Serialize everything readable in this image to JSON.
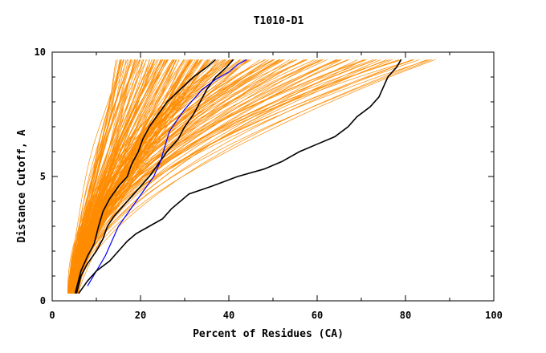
{
  "chart_data": {
    "type": "line",
    "title": "T1010-D1",
    "xlabel": "Percent of Residues (CA)",
    "ylabel": "Distance Cutoff, A",
    "xlim": [
      0,
      100
    ],
    "ylim": [
      0,
      10
    ],
    "x_ticks": [
      "0",
      "20",
      "40",
      "60",
      "80",
      "100"
    ],
    "y_ticks": [
      "0",
      "5",
      "10"
    ],
    "grid": false,
    "legend": "none",
    "colors": {
      "models": "#ff8c00",
      "highlight_black": "#000000",
      "highlight_blue": "#0000ff",
      "axes": "#000000"
    },
    "note": "many orange model curves (GDT plot); approximate envelopes given",
    "series": [
      {
        "color": "#000000",
        "points": [
          [
            5.2,
            0.3
          ],
          [
            6.5,
            1.2
          ],
          [
            8,
            1.8
          ],
          [
            9.5,
            2.3
          ],
          [
            10.5,
            3
          ],
          [
            11.5,
            3.6
          ],
          [
            13,
            4.1
          ],
          [
            15,
            4.6
          ],
          [
            17,
            5
          ],
          [
            18,
            5.5
          ],
          [
            19.5,
            6
          ],
          [
            20.5,
            6.5
          ],
          [
            22,
            7
          ],
          [
            24,
            7.5
          ],
          [
            26,
            8
          ],
          [
            29,
            8.5
          ],
          [
            32,
            9
          ],
          [
            35,
            9.4
          ],
          [
            37,
            9.7
          ]
        ]
      },
      {
        "color": "#000000",
        "points": [
          [
            5.5,
            0.3
          ],
          [
            6.5,
            1
          ],
          [
            8,
            1.5
          ],
          [
            10,
            2
          ],
          [
            11.5,
            2.5
          ],
          [
            12.5,
            3
          ],
          [
            14,
            3.4
          ],
          [
            16,
            3.8
          ],
          [
            18,
            4.2
          ],
          [
            20,
            4.6
          ],
          [
            22,
            5
          ],
          [
            24,
            5.5
          ],
          [
            26,
            6
          ],
          [
            28.5,
            6.5
          ],
          [
            30,
            7
          ],
          [
            32,
            7.5
          ],
          [
            33.5,
            8
          ],
          [
            35,
            8.5
          ],
          [
            37,
            9
          ],
          [
            39.5,
            9.4
          ],
          [
            41,
            9.7
          ]
        ]
      },
      {
        "color": "#0000ff",
        "points": [
          [
            8,
            0.6
          ],
          [
            10,
            1.2
          ],
          [
            12,
            1.8
          ],
          [
            13.5,
            2.4
          ],
          [
            15,
            3
          ],
          [
            17,
            3.5
          ],
          [
            19,
            4
          ],
          [
            21,
            4.5
          ],
          [
            23,
            5
          ],
          [
            24.5,
            5.6
          ],
          [
            25.5,
            6.2
          ],
          [
            26.5,
            6.8
          ],
          [
            28,
            7.2
          ],
          [
            30,
            7.7
          ],
          [
            32,
            8.1
          ],
          [
            34,
            8.5
          ],
          [
            37,
            8.9
          ],
          [
            40,
            9.2
          ],
          [
            42,
            9.5
          ],
          [
            44,
            9.7
          ]
        ]
      },
      {
        "color": "#000000",
        "points": [
          [
            6,
            0.3
          ],
          [
            8,
            0.8
          ],
          [
            10,
            1.2
          ],
          [
            13,
            1.6
          ],
          [
            15,
            2
          ],
          [
            17,
            2.4
          ],
          [
            19,
            2.7
          ],
          [
            22,
            3
          ],
          [
            25,
            3.3
          ],
          [
            27,
            3.7
          ],
          [
            29,
            4
          ],
          [
            31,
            4.3
          ],
          [
            36,
            4.6
          ],
          [
            42,
            5
          ],
          [
            48,
            5.3
          ],
          [
            52,
            5.6
          ],
          [
            56,
            6
          ],
          [
            60,
            6.3
          ],
          [
            64,
            6.6
          ],
          [
            67,
            7
          ],
          [
            69,
            7.4
          ],
          [
            72,
            7.8
          ],
          [
            74,
            8.2
          ],
          [
            75,
            8.6
          ],
          [
            76,
            9
          ],
          [
            78,
            9.4
          ],
          [
            79,
            9.7
          ]
        ]
      }
    ]
  }
}
